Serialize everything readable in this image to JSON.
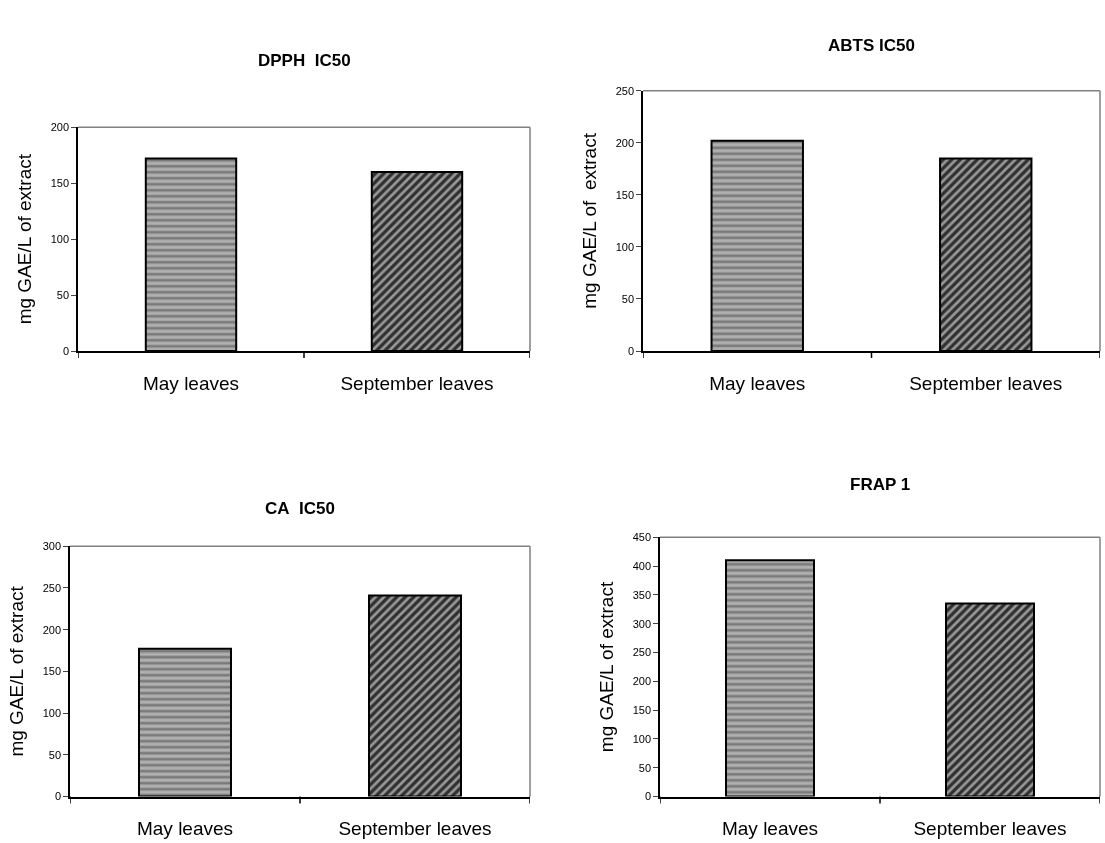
{
  "chart_data": [
    {
      "type": "bar",
      "title": "DPPH  IC50",
      "ylabel": "mg GAE/L of extract",
      "categories": [
        "May leaves",
        "September leaves"
      ],
      "values": [
        172,
        160
      ],
      "colors": [
        "#b0b0b0",
        "#303030"
      ],
      "ylim": [
        0,
        200
      ],
      "yticks": [
        0,
        50,
        100,
        150,
        200
      ]
    },
    {
      "type": "bar",
      "title": "ABTS IC50",
      "ylabel": "mg GAE/L of  extract",
      "categories": [
        "May leaves",
        "September leaves"
      ],
      "values": [
        202,
        185
      ],
      "colors": [
        "#b0b0b0",
        "#303030"
      ],
      "ylim": [
        0,
        250
      ],
      "yticks": [
        0,
        50,
        100,
        150,
        200,
        250
      ]
    },
    {
      "type": "bar",
      "title": "CA  IC50",
      "ylabel": "mg GAE/L of extract",
      "categories": [
        "May leaves",
        "September leaves"
      ],
      "values": [
        177,
        241
      ],
      "colors": [
        "#b0b0b0",
        "#303030"
      ],
      "ylim": [
        0,
        300
      ],
      "yticks": [
        0,
        50,
        100,
        150,
        200,
        250,
        300
      ]
    },
    {
      "type": "bar",
      "title": "FRAP 1",
      "ylabel": "mg GAE/L of extract",
      "categories": [
        "May leaves",
        "September leaves"
      ],
      "values": [
        410,
        335
      ],
      "colors": [
        "#b0b0b0",
        "#303030"
      ],
      "ylim": [
        0,
        450
      ],
      "yticks": [
        0,
        50,
        100,
        150,
        200,
        250,
        300,
        350,
        400,
        450
      ]
    }
  ]
}
